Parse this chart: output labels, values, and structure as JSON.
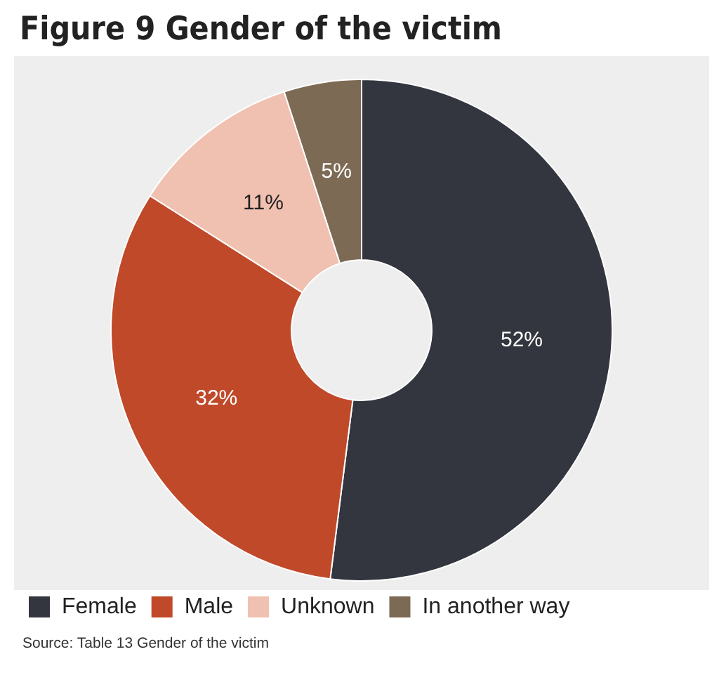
{
  "chart_data": {
    "type": "donut",
    "title": "Figure 9 Gender of the victim",
    "categories": [
      "Female",
      "Male",
      "Unknown",
      "In another way"
    ],
    "values": [
      52,
      32,
      11,
      5
    ],
    "colors": [
      "#33363f",
      "#c0492a",
      "#f0c0b0",
      "#7d6a55"
    ],
    "value_labels": [
      "52%",
      "32%",
      "11%",
      "5%"
    ],
    "legend": "bottom",
    "annotations": [
      "Source: Table 13 Gender of the victim"
    ]
  }
}
